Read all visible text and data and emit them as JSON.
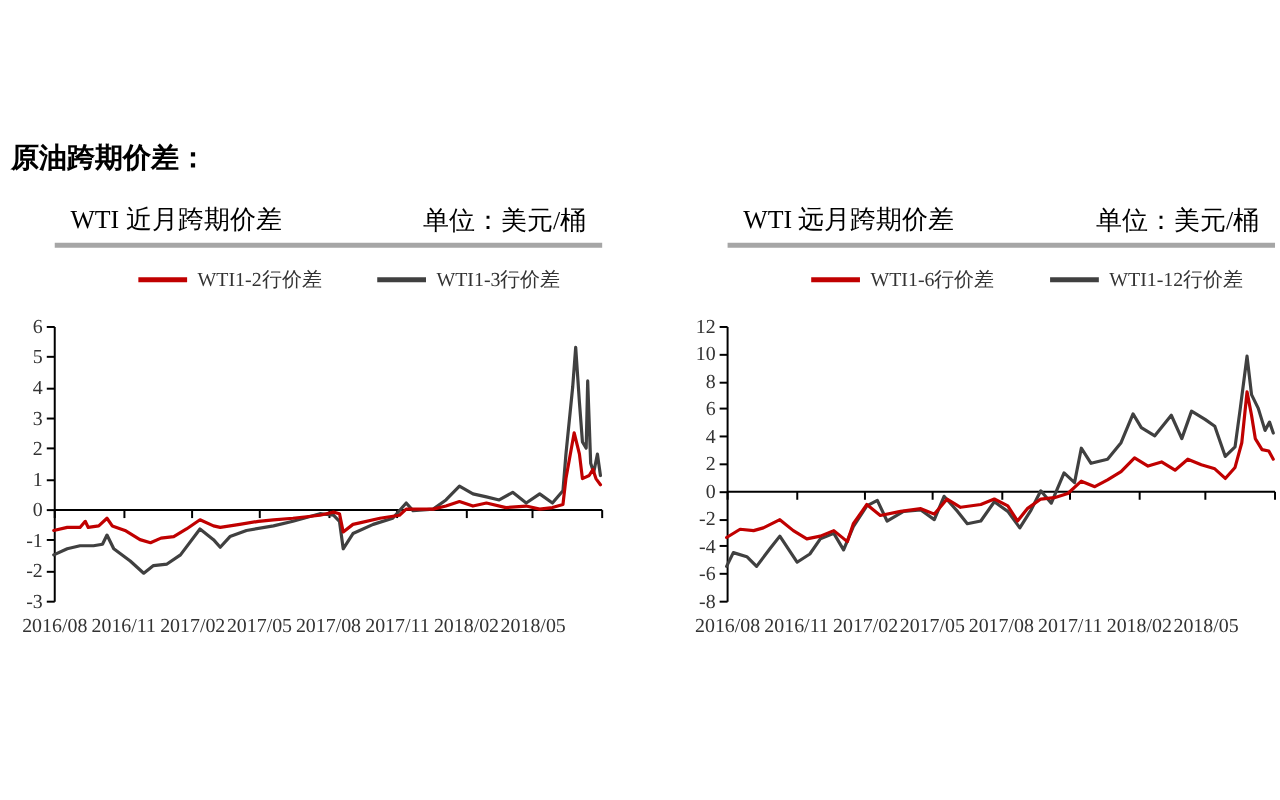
{
  "chart_data": [
    {
      "type": "line",
      "title": "WTI 近月跨期价差",
      "subtitle": "单位：美元/桶",
      "annotations": [
        "原油跨期价差："
      ],
      "legend": "top",
      "xlim": [
        "2016-08-01",
        "2018-08-01"
      ],
      "xticks": [
        {
          "value": "2016-08-01",
          "label": "2016/08"
        },
        {
          "value": "2016-11-01",
          "label": "2016/11"
        },
        {
          "value": "2017-02-01",
          "label": "2017/02"
        },
        {
          "value": "2017-05-01",
          "label": "2017/05"
        },
        {
          "value": "2017-08-01",
          "label": "2017/08"
        },
        {
          "value": "2017-11-01",
          "label": "2017/11"
        },
        {
          "value": "2018-02-01",
          "label": "2018/02"
        },
        {
          "value": "2018-05-01",
          "label": "2018/05"
        },
        {
          "value": "2018-08-01",
          "label": null
        }
      ],
      "ylim": [
        -3,
        6
      ],
      "yticks": [
        -3,
        -2,
        -1,
        0,
        1,
        2,
        3,
        4,
        5,
        6
      ],
      "series": [
        {
          "name": "WTI1-2行价差",
          "color": "#c00000",
          "x": [
            "2016-08-01",
            "2016-08-19",
            "2016-09-05",
            "2016-09-12",
            "2016-09-16",
            "2016-09-30",
            "2016-10-11",
            "2016-10-18",
            "2016-11-04",
            "2016-11-24",
            "2016-12-08",
            "2016-12-22",
            "2017-01-08",
            "2017-01-25",
            "2017-02-12",
            "2017-03-02",
            "2017-03-11",
            "2017-04-06",
            "2017-05-01",
            "2017-05-21",
            "2017-06-16",
            "2017-07-22",
            "2017-08-09",
            "2017-08-17",
            "2017-08-22",
            "2017-09-04",
            "2017-09-13",
            "2017-10-10",
            "2017-11-05",
            "2017-11-14",
            "2017-12-20",
            "2018-01-06",
            "2018-01-24",
            "2018-02-11",
            "2018-03-01",
            "2018-03-27",
            "2018-04-23",
            "2018-05-11",
            "2018-05-28",
            "2018-06-11",
            "2018-06-15",
            "2018-06-26",
            "2018-07-03",
            "2018-07-07",
            "2018-07-16",
            "2018-07-21",
            "2018-07-25",
            "2018-07-31"
          ],
          "values": [
            -0.7,
            -0.6,
            -0.6,
            -0.4,
            -0.6,
            -0.55,
            -0.3,
            -0.55,
            -0.7,
            -1.0,
            -1.1,
            -0.95,
            -0.9,
            -0.65,
            -0.35,
            -0.55,
            -0.6,
            -0.5,
            -0.4,
            -0.35,
            -0.3,
            -0.2,
            -0.1,
            -0.15,
            -0.75,
            -0.5,
            -0.45,
            -0.3,
            -0.2,
            0.0,
            0.0,
            0.1,
            0.25,
            0.1,
            0.2,
            0.05,
            0.1,
            0.0,
            0.05,
            0.15,
            1.0,
            2.5,
            1.8,
            1.0,
            1.1,
            1.3,
            1.0,
            0.8
          ]
        },
        {
          "name": "WTI1-3行价差",
          "color": "#404040",
          "x": [
            "2016-08-01",
            "2016-08-19",
            "2016-09-05",
            "2016-09-23",
            "2016-10-05",
            "2016-10-11",
            "2016-10-20",
            "2016-11-11",
            "2016-11-29",
            "2016-12-12",
            "2016-12-30",
            "2017-01-17",
            "2017-02-12",
            "2017-03-02",
            "2017-03-11",
            "2017-03-24",
            "2017-04-15",
            "2017-05-21",
            "2017-06-16",
            "2017-07-22",
            "2017-08-09",
            "2017-08-17",
            "2017-08-22",
            "2017-09-04",
            "2017-10-01",
            "2017-10-27",
            "2017-11-14",
            "2017-11-23",
            "2017-12-20",
            "2018-01-06",
            "2018-01-24",
            "2018-02-11",
            "2018-03-01",
            "2018-03-18",
            "2018-04-05",
            "2018-04-23",
            "2018-05-11",
            "2018-05-28",
            "2018-06-11",
            "2018-06-15",
            "2018-06-24",
            "2018-06-28",
            "2018-07-03",
            "2018-07-07",
            "2018-07-12",
            "2018-07-14",
            "2018-07-18",
            "2018-07-22",
            "2018-07-27",
            "2018-07-31"
          ],
          "values": [
            -1.5,
            -1.3,
            -1.2,
            -1.2,
            -1.15,
            -0.85,
            -1.3,
            -1.7,
            -2.1,
            -1.85,
            -1.8,
            -1.5,
            -0.65,
            -1.0,
            -1.25,
            -0.9,
            -0.7,
            -0.55,
            -0.4,
            -0.15,
            -0.2,
            -0.4,
            -1.3,
            -0.8,
            -0.5,
            -0.3,
            0.2,
            -0.05,
            0.0,
            0.3,
            0.75,
            0.5,
            0.4,
            0.3,
            0.55,
            0.2,
            0.5,
            0.2,
            0.6,
            1.8,
            4.0,
            5.3,
            3.5,
            2.2,
            2.0,
            4.2,
            1.5,
            1.2,
            1.8,
            1.1
          ]
        }
      ]
    },
    {
      "type": "line",
      "title": "WTI 远月跨期价差",
      "subtitle": "单位：美元/桶",
      "legend": "top",
      "xlim": [
        "2016-08-01",
        "2018-08-01"
      ],
      "xticks": [
        {
          "value": "2016-08-01",
          "label": "2016/08"
        },
        {
          "value": "2016-11-01",
          "label": "2016/11"
        },
        {
          "value": "2017-02-01",
          "label": "2017/02"
        },
        {
          "value": "2017-05-01",
          "label": "2017/05"
        },
        {
          "value": "2017-08-01",
          "label": "2017/08"
        },
        {
          "value": "2017-11-01",
          "label": "2017/11"
        },
        {
          "value": "2018-02-01",
          "label": "2018/02"
        },
        {
          "value": "2018-05-01",
          "label": "2018/05"
        },
        {
          "value": "2018-08-01",
          "label": null
        }
      ],
      "ylim": [
        -8,
        12
      ],
      "yticks": [
        -8,
        -6,
        -4,
        -2,
        0,
        2,
        4,
        6,
        8,
        10,
        12
      ],
      "series": [
        {
          "name": "WTI1-6行价差",
          "color": "#c00000",
          "x": [
            "2016-08-01",
            "2016-08-19",
            "2016-09-06",
            "2016-09-19",
            "2016-10-11",
            "2016-10-29",
            "2016-11-16",
            "2016-12-04",
            "2016-12-22",
            "2017-01-09",
            "2017-01-17",
            "2017-02-04",
            "2017-02-22",
            "2017-03-21",
            "2017-04-17",
            "2017-05-05",
            "2017-05-22",
            "2017-06-09",
            "2017-07-06",
            "2017-07-24",
            "2017-08-11",
            "2017-08-24",
            "2017-09-06",
            "2017-09-24",
            "2017-10-12",
            "2017-10-30",
            "2017-11-17",
            "2017-12-05",
            "2017-12-22",
            "2018-01-09",
            "2018-01-27",
            "2018-02-14",
            "2018-03-04",
            "2018-03-22",
            "2018-04-08",
            "2018-04-26",
            "2018-05-14",
            "2018-05-28",
            "2018-06-10",
            "2018-06-19",
            "2018-06-26",
            "2018-07-02",
            "2018-07-07",
            "2018-07-16",
            "2018-07-25",
            "2018-07-31"
          ],
          "values": [
            -3.4,
            -2.8,
            -2.9,
            -2.7,
            -2.1,
            -2.9,
            -3.5,
            -3.3,
            -2.9,
            -3.7,
            -2.4,
            -1.0,
            -1.8,
            -1.5,
            -1.3,
            -1.7,
            -0.6,
            -1.2,
            -1.0,
            -0.6,
            -1.1,
            -2.2,
            -1.3,
            -0.6,
            -0.5,
            -0.2,
            0.7,
            0.3,
            0.8,
            1.4,
            2.4,
            1.8,
            2.1,
            1.5,
            2.3,
            1.9,
            1.6,
            0.9,
            1.7,
            3.5,
            7.2,
            5.5,
            3.8,
            3.0,
            2.9,
            2.3
          ]
        },
        {
          "name": "WTI1-12行价差",
          "color": "#404040",
          "x": [
            "2016-08-01",
            "2016-08-10",
            "2016-08-28",
            "2016-09-10",
            "2016-09-28",
            "2016-10-11",
            "2016-11-03",
            "2016-11-20",
            "2016-12-04",
            "2016-12-22",
            "2017-01-04",
            "2017-01-17",
            "2017-02-04",
            "2017-02-18",
            "2017-03-03",
            "2017-03-25",
            "2017-04-17",
            "2017-05-05",
            "2017-05-18",
            "2017-06-05",
            "2017-06-18",
            "2017-07-06",
            "2017-07-24",
            "2017-08-11",
            "2017-08-27",
            "2017-09-11",
            "2017-09-24",
            "2017-10-08",
            "2017-10-25",
            "2017-11-08",
            "2017-11-17",
            "2017-11-30",
            "2017-12-22",
            "2018-01-09",
            "2018-01-25",
            "2018-02-05",
            "2018-02-23",
            "2018-03-17",
            "2018-03-31",
            "2018-04-13",
            "2018-05-01",
            "2018-05-14",
            "2018-05-28",
            "2018-06-10",
            "2018-06-17",
            "2018-06-26",
            "2018-07-02",
            "2018-07-11",
            "2018-07-20",
            "2018-07-26",
            "2018-07-31"
          ],
          "values": [
            -5.5,
            -4.5,
            -4.8,
            -5.5,
            -4.2,
            -3.3,
            -5.2,
            -4.6,
            -3.5,
            -3.1,
            -4.3,
            -2.6,
            -1.1,
            -0.7,
            -2.2,
            -1.5,
            -1.4,
            -2.1,
            -0.4,
            -1.5,
            -2.4,
            -2.2,
            -0.8,
            -1.5,
            -2.7,
            -1.4,
            0.0,
            -0.9,
            1.3,
            0.6,
            3.1,
            2.0,
            2.3,
            3.5,
            5.6,
            4.6,
            4.0,
            5.5,
            3.8,
            5.8,
            5.2,
            4.7,
            2.5,
            3.2,
            6.0,
            9.8,
            7.0,
            6.0,
            4.4,
            5.0,
            4.2
          ]
        }
      ]
    }
  ]
}
